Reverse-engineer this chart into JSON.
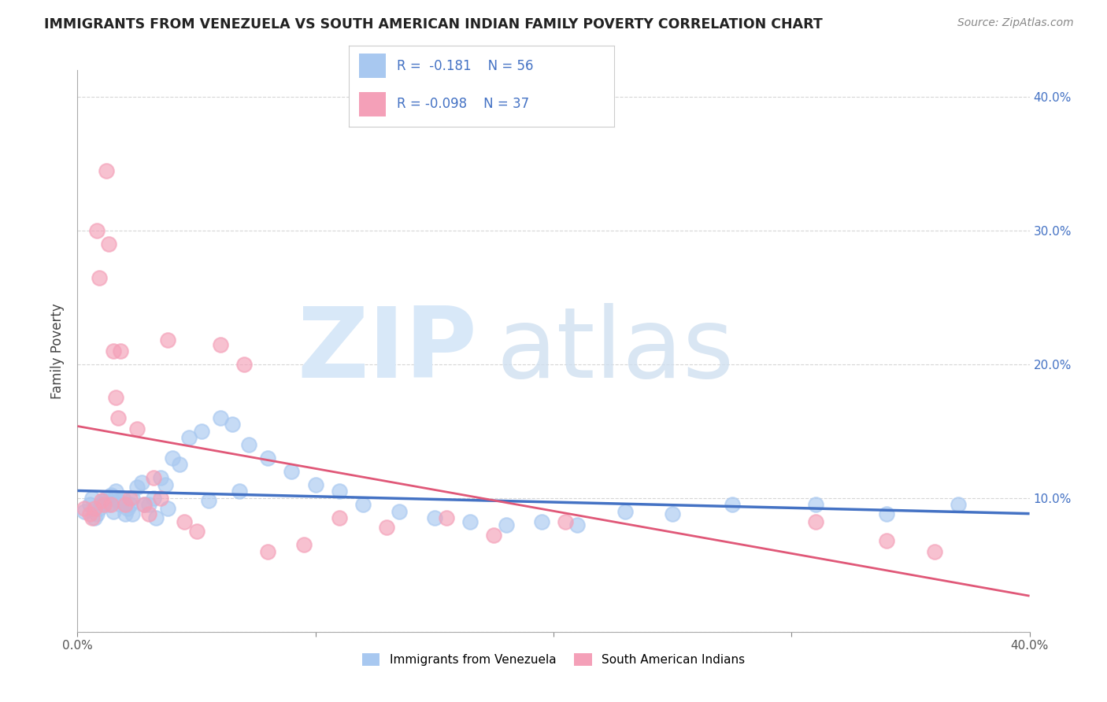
{
  "title": "IMMIGRANTS FROM VENEZUELA VS SOUTH AMERICAN INDIAN FAMILY POVERTY CORRELATION CHART",
  "source": "Source: ZipAtlas.com",
  "ylabel": "Family Poverty",
  "xlim": [
    0,
    0.4
  ],
  "ylim": [
    0,
    0.42
  ],
  "legend_label1": "Immigrants from Venezuela",
  "legend_label2": "South American Indians",
  "r1": -0.181,
  "n1": 56,
  "r2": -0.098,
  "n2": 37,
  "color_blue": "#A8C8F0",
  "color_pink": "#F4A0B8",
  "line_blue": "#4472C4",
  "line_pink": "#E05878",
  "blue_points_x": [
    0.003,
    0.005,
    0.006,
    0.007,
    0.008,
    0.009,
    0.01,
    0.011,
    0.012,
    0.013,
    0.014,
    0.015,
    0.016,
    0.017,
    0.018,
    0.019,
    0.02,
    0.021,
    0.022,
    0.023,
    0.025,
    0.027,
    0.03,
    0.032,
    0.035,
    0.037,
    0.04,
    0.043,
    0.047,
    0.052,
    0.06,
    0.065,
    0.072,
    0.08,
    0.09,
    0.1,
    0.11,
    0.12,
    0.135,
    0.15,
    0.165,
    0.18,
    0.195,
    0.21,
    0.23,
    0.25,
    0.275,
    0.31,
    0.34,
    0.37,
    0.023,
    0.028,
    0.033,
    0.038,
    0.055,
    0.068
  ],
  "blue_points_y": [
    0.09,
    0.095,
    0.1,
    0.085,
    0.088,
    0.092,
    0.096,
    0.098,
    0.1,
    0.095,
    0.102,
    0.09,
    0.105,
    0.098,
    0.095,
    0.1,
    0.088,
    0.092,
    0.095,
    0.1,
    0.108,
    0.112,
    0.095,
    0.1,
    0.115,
    0.11,
    0.13,
    0.125,
    0.145,
    0.15,
    0.16,
    0.155,
    0.14,
    0.13,
    0.12,
    0.11,
    0.105,
    0.095,
    0.09,
    0.085,
    0.082,
    0.08,
    0.082,
    0.08,
    0.09,
    0.088,
    0.095,
    0.095,
    0.088,
    0.095,
    0.088,
    0.095,
    0.085,
    0.092,
    0.098,
    0.105
  ],
  "pink_points_x": [
    0.003,
    0.005,
    0.006,
    0.007,
    0.008,
    0.009,
    0.01,
    0.011,
    0.012,
    0.013,
    0.014,
    0.015,
    0.016,
    0.017,
    0.018,
    0.02,
    0.022,
    0.025,
    0.028,
    0.03,
    0.032,
    0.035,
    0.038,
    0.045,
    0.05,
    0.06,
    0.07,
    0.08,
    0.095,
    0.11,
    0.13,
    0.155,
    0.175,
    0.205,
    0.31,
    0.34,
    0.36
  ],
  "pink_points_y": [
    0.092,
    0.088,
    0.085,
    0.092,
    0.3,
    0.265,
    0.098,
    0.095,
    0.345,
    0.29,
    0.095,
    0.21,
    0.175,
    0.16,
    0.21,
    0.095,
    0.1,
    0.152,
    0.095,
    0.088,
    0.115,
    0.1,
    0.218,
    0.082,
    0.075,
    0.215,
    0.2,
    0.06,
    0.065,
    0.085,
    0.078,
    0.085,
    0.072,
    0.082,
    0.082,
    0.068,
    0.06
  ]
}
